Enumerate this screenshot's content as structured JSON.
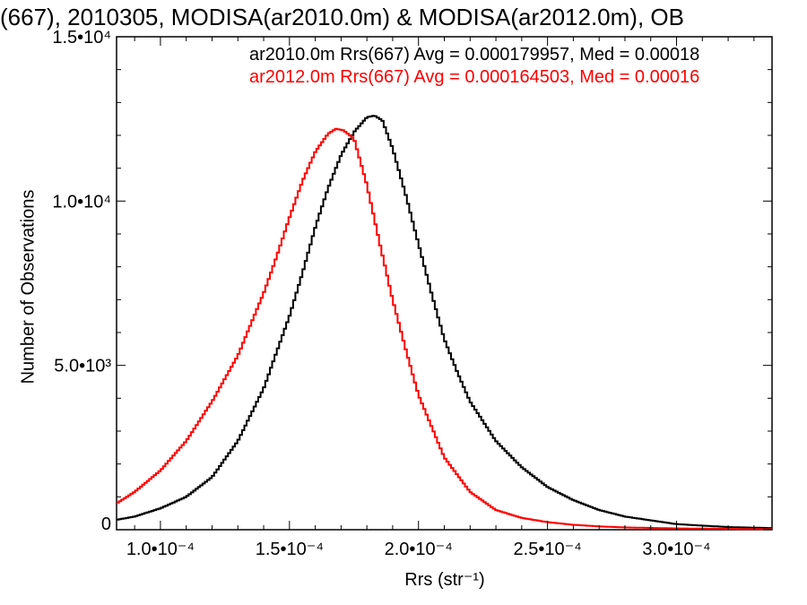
{
  "chart_data": {
    "type": "line",
    "title": "(667), 2010305, MODISA(ar2010.0m) & MODISA(ar2012.0m), OB",
    "xlabel": "Rrs (str⁻¹)",
    "ylabel": "Number of Observations",
    "xlim": [
      8.3e-05,
      0.000337
    ],
    "ylim": [
      0,
      15000
    ],
    "x_ticks": [
      {
        "value": 0.0001,
        "label": "1.0•10⁻⁴"
      },
      {
        "value": 0.00015,
        "label": "1.5•10⁻⁴"
      },
      {
        "value": 0.0002,
        "label": "2.0•10⁻⁴"
      },
      {
        "value": 0.00025,
        "label": "2.5•10⁻⁴"
      },
      {
        "value": 0.0003,
        "label": "3.0•10⁻⁴"
      }
    ],
    "y_ticks": [
      {
        "value": 0,
        "label": "0"
      },
      {
        "value": 5000,
        "label": "5.0•10³"
      },
      {
        "value": 10000,
        "label": "1.0•10⁴"
      },
      {
        "value": 15000,
        "label": "1.5•10⁴"
      }
    ],
    "legend_position": "top-right",
    "series": [
      {
        "name": "ar2010.0m Rrs(667) Avg = 0.000179957, Med = 0.00018",
        "color": "#000000",
        "x": [
          8.3e-05,
          9e-05,
          0.0001,
          0.00011,
          0.00012,
          0.00013,
          0.00014,
          0.00015,
          0.000155,
          0.00016,
          0.000165,
          0.00017,
          0.000175,
          0.00018,
          0.000183,
          0.000186,
          0.00019,
          0.000195,
          0.0002,
          0.000205,
          0.00021,
          0.000215,
          0.00022,
          0.00023,
          0.00024,
          0.00025,
          0.00026,
          0.00027,
          0.00028,
          0.0003,
          0.00032,
          0.000337
        ],
        "y": [
          300,
          400,
          650,
          1000,
          1600,
          2700,
          4300,
          6500,
          7800,
          9200,
          10400,
          11400,
          12100,
          12550,
          12600,
          12450,
          11600,
          10200,
          8700,
          7200,
          5800,
          4800,
          3900,
          2700,
          1900,
          1300,
          900,
          600,
          400,
          170,
          80,
          50
        ]
      },
      {
        "name": "ar2012.0m Rrs(667) Avg = 0.000164503, Med = 0.00016",
        "color": "#ff0000",
        "x": [
          8.3e-05,
          9e-05,
          0.0001,
          0.00011,
          0.00012,
          0.00013,
          0.00014,
          0.000145,
          0.00015,
          0.000155,
          0.00016,
          0.000165,
          0.000168,
          0.000171,
          0.000175,
          0.00018,
          0.000185,
          0.00019,
          0.000195,
          0.0002,
          0.00021,
          0.00022,
          0.00023,
          0.00024,
          0.00025,
          0.00026,
          0.00027,
          0.00028,
          0.0003,
          0.00032,
          0.000337
        ],
        "y": [
          800,
          1150,
          1800,
          2700,
          3900,
          5300,
          7200,
          8300,
          9500,
          10600,
          11500,
          12050,
          12200,
          12150,
          11900,
          10500,
          8700,
          7000,
          5500,
          4100,
          2200,
          1150,
          600,
          360,
          230,
          150,
          100,
          70,
          40,
          25,
          15
        ]
      }
    ]
  }
}
